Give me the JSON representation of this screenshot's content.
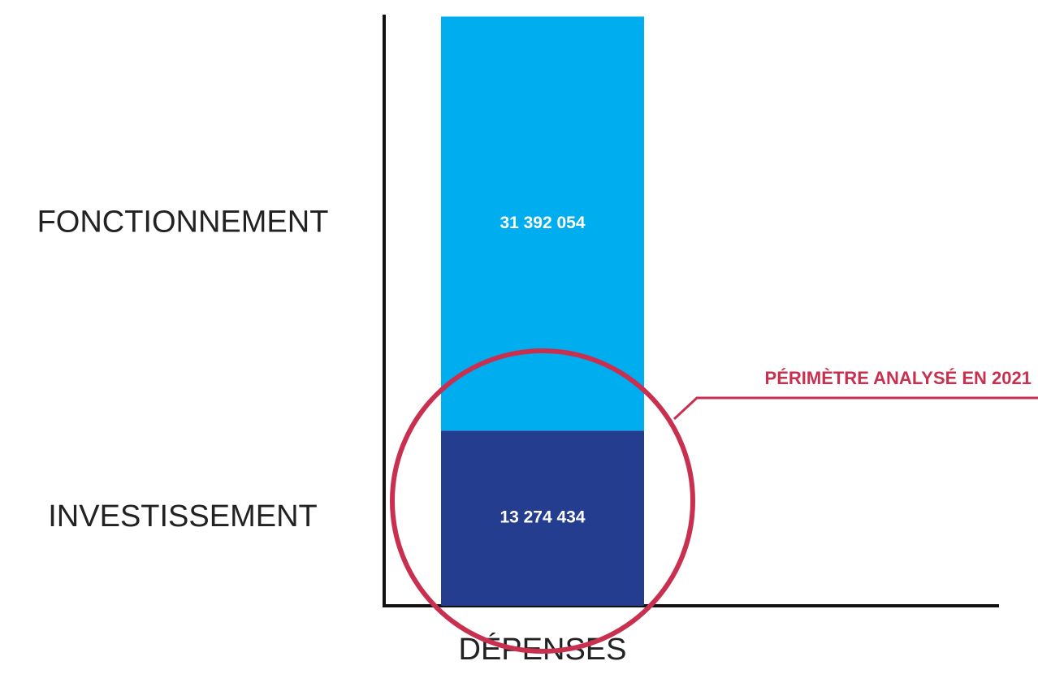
{
  "chart_data": {
    "type": "stacked-bar",
    "categories": [
      "DÉPENSES"
    ],
    "series": [
      {
        "name": "INVESTISSEMENT",
        "color": "#253d8e",
        "values": [
          13274434
        ],
        "value_labels": [
          "13 274 434"
        ]
      },
      {
        "name": "FONCTIONNEMENT",
        "color": "#00adef",
        "values": [
          31392054
        ],
        "value_labels": [
          "31 392 054"
        ]
      }
    ],
    "ylim": [
      0,
      45000000
    ],
    "annotation": "PÉRIMÈTRE ANALYSÉ EN 2021",
    "annotation_color": "#c9304f"
  }
}
